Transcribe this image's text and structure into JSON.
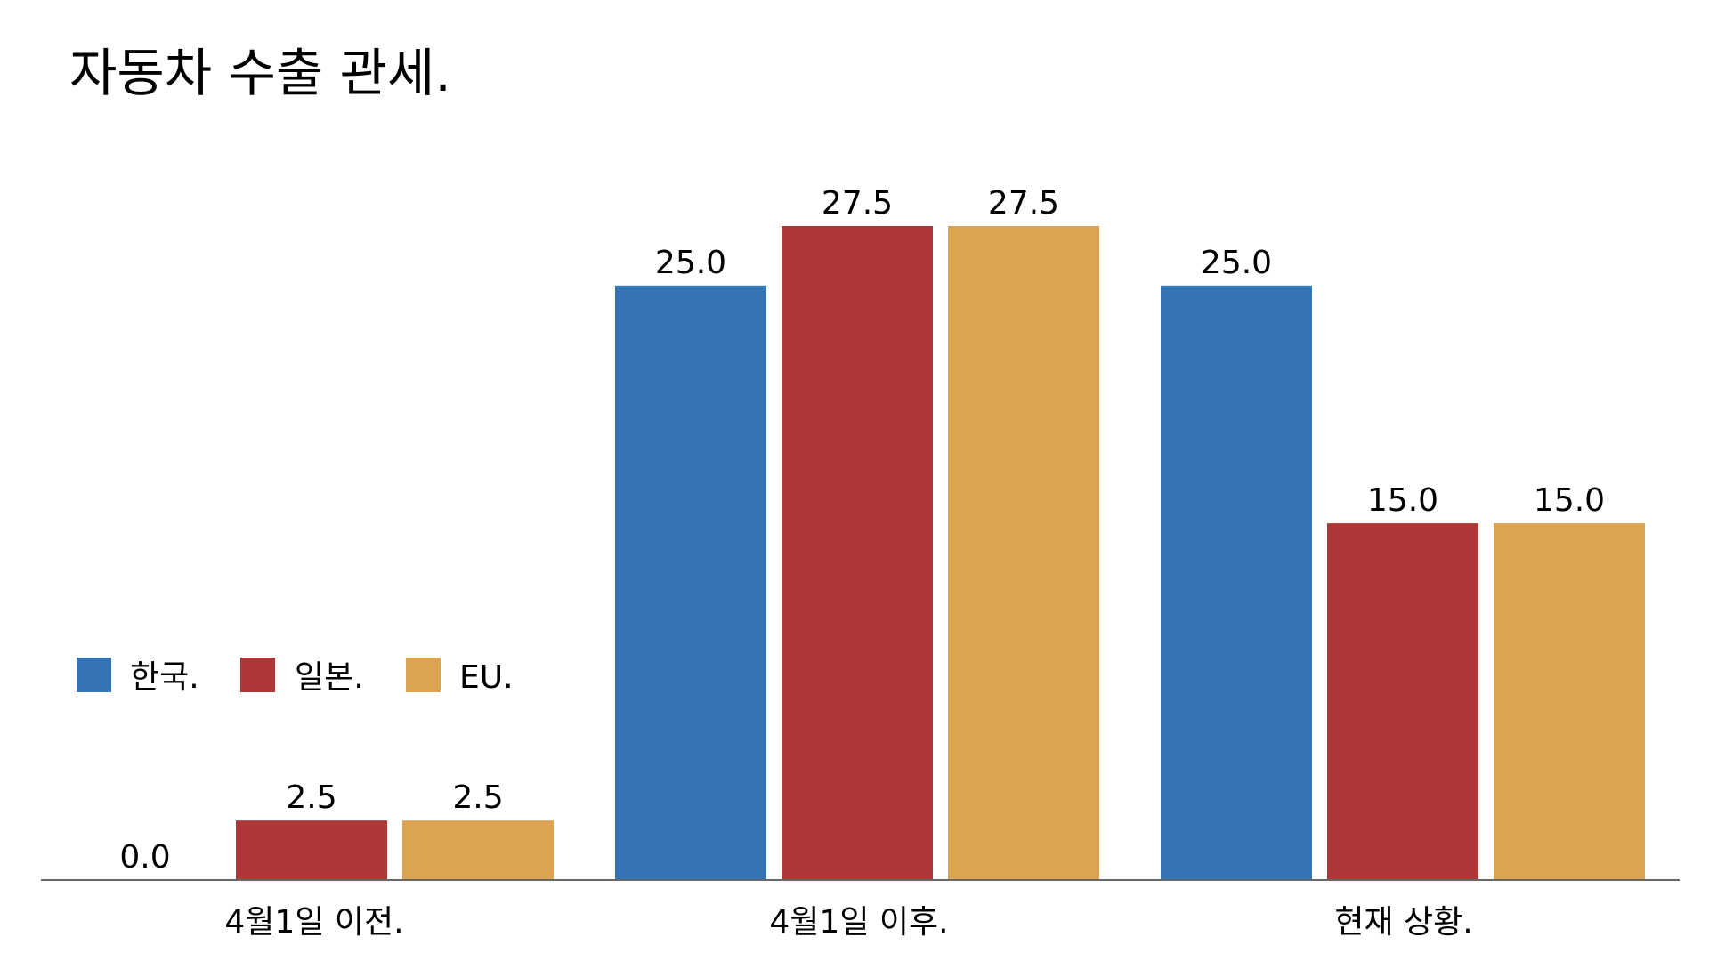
{
  "chart_data": {
    "type": "bar",
    "title": "자동차 수출 관세.",
    "categories": [
      "4월1일 이전.",
      "4월1일 이후.",
      "현재 상황."
    ],
    "series": [
      {
        "name": "한국.",
        "color": "#3474b4",
        "values": [
          0.0,
          25.0,
          25.0
        ]
      },
      {
        "name": "일본.",
        "color": "#ae3838",
        "values": [
          2.5,
          27.5,
          15.0
        ]
      },
      {
        "name": "EU.",
        "color": "#dca452",
        "values": [
          2.5,
          27.5,
          15.0
        ]
      }
    ],
    "value_labels": [
      [
        "0.0",
        "25.0",
        "25.0"
      ],
      [
        "2.5",
        "27.5",
        "15.0"
      ],
      [
        "2.5",
        "27.5",
        "15.0"
      ]
    ],
    "ylim": [
      0,
      27.5
    ],
    "grid": false,
    "legend_position": "left"
  }
}
